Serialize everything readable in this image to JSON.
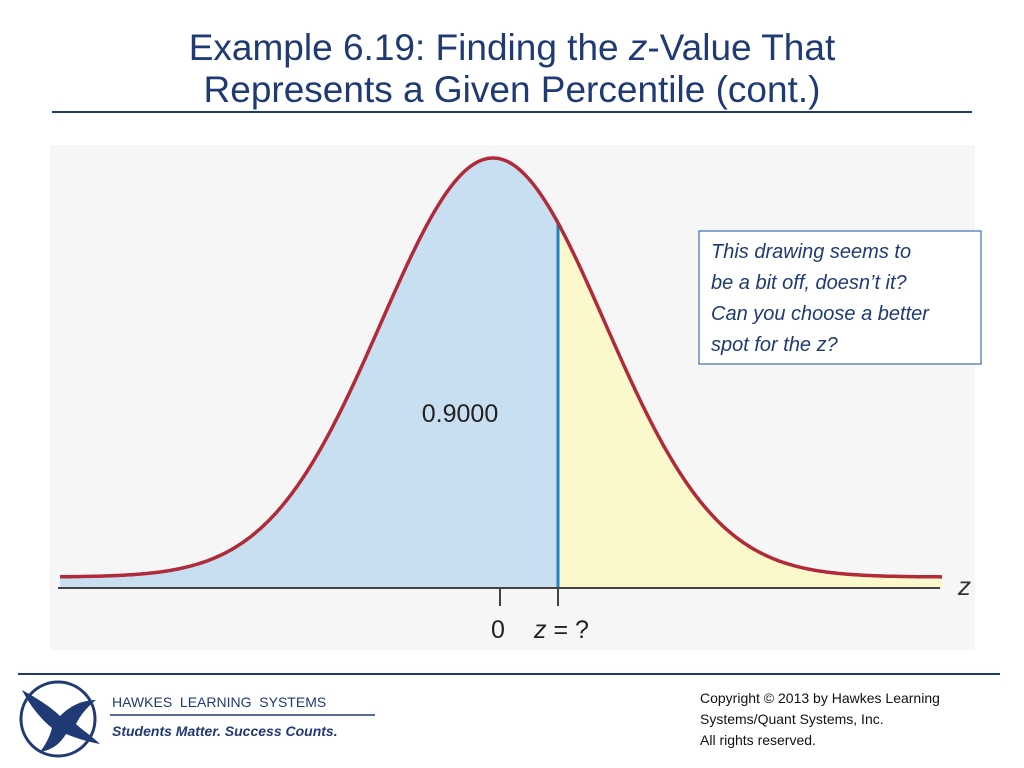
{
  "header": {
    "title_line1": [
      "Example 6.19: Finding the ",
      "z",
      "-Value That"
    ],
    "title_line2": "Represents a Given Percentile (cont.)"
  },
  "figure": {
    "area_label": "0.9000",
    "axis_label": "z",
    "tick_zero": "0",
    "tick_z": [
      "z",
      " = ?"
    ]
  },
  "note": {
    "lines": [
      "This drawing seems to",
      "be a bit off, doesn’t it?",
      "Can you choose a better",
      "spot for the z?"
    ]
  },
  "footer": {
    "company": "HAWKES  LEARNING  SYSTEMS",
    "slogan": "Students Matter. Success Counts.",
    "copyright": [
      "Copyright © 2013 by Hawkes Learning",
      "Systems/Quant Systems, Inc.",
      "All rights reserved."
    ]
  }
}
